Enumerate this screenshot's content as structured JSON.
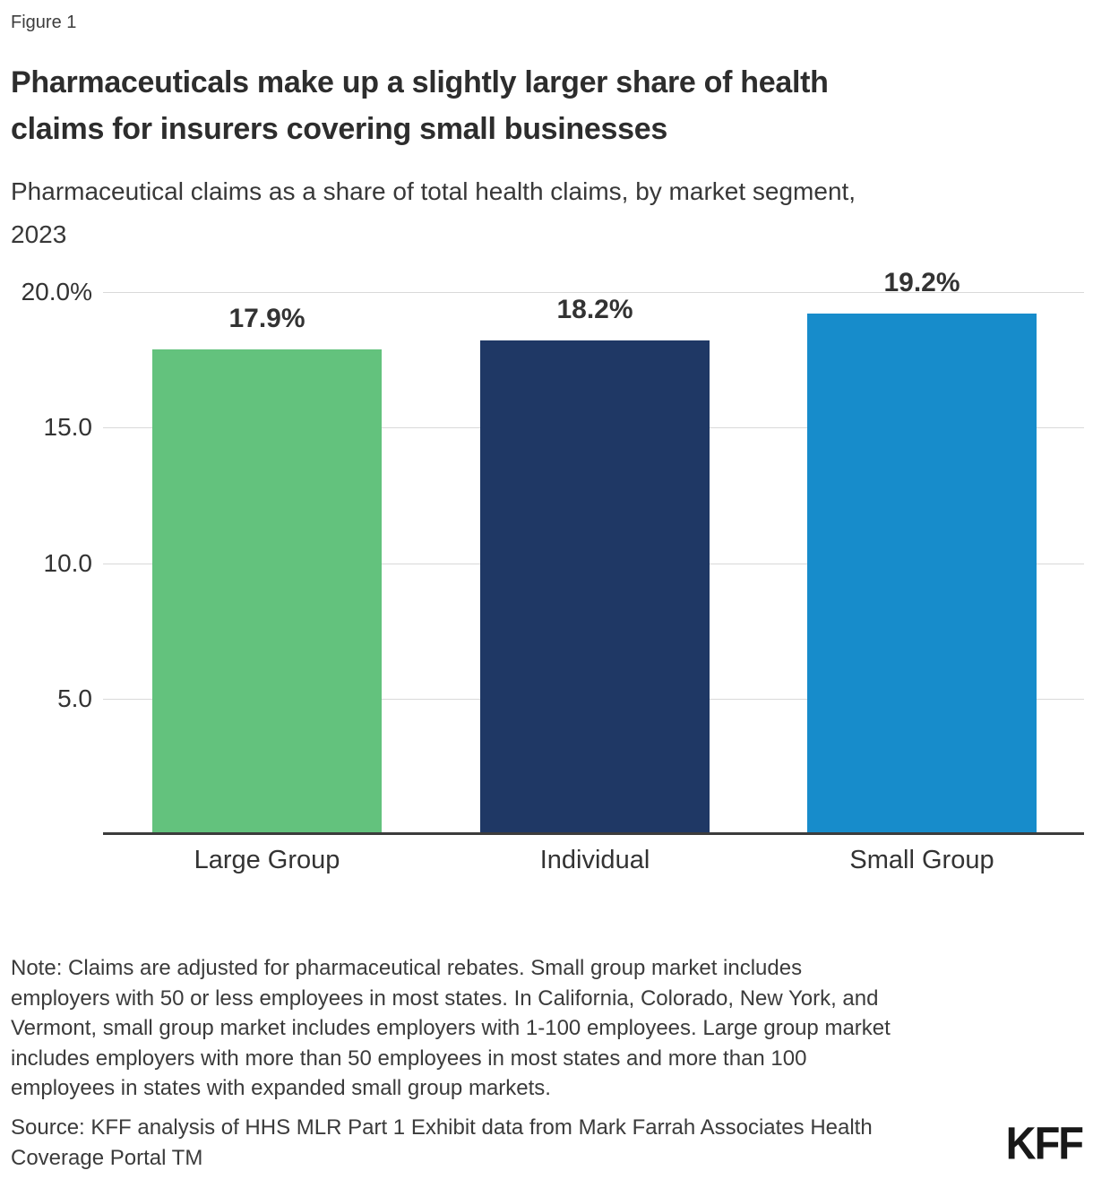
{
  "figure_label": "Figure 1",
  "title": "Pharmaceuticals make up a slightly larger share of health claims for insurers covering small businesses",
  "title_lines": [
    "Pharmaceuticals make up a slightly larger share of health",
    "claims for insurers covering small businesses"
  ],
  "subtitle": "Pharmaceutical claims as a share of total health claims, by market segment, 2023",
  "subtitle_lines": [
    "Pharmaceutical claims as a share of total health claims, by market segment,",
    "2023"
  ],
  "chart_data": {
    "type": "bar",
    "categories": [
      "Large Group",
      "Individual",
      "Small Group"
    ],
    "values": [
      17.9,
      18.2,
      19.2
    ],
    "value_labels": [
      "17.9%",
      "18.2%",
      "19.2%"
    ],
    "bar_colors": [
      "#63c27d",
      "#1f3865",
      "#178ccb"
    ],
    "title": "Pharmaceuticals make up a slightly larger share of health claims for insurers covering small businesses",
    "subtitle": "Pharmaceutical claims as a share of total health claims, by market segment, 2023",
    "xlabel": "",
    "ylabel": "",
    "ylim": [
      0,
      20
    ],
    "grid": "horizontal",
    "legend": "none",
    "yticks": [
      {
        "label": "20.0%",
        "value": 20
      },
      {
        "label": "15.0",
        "value": 15
      },
      {
        "label": "10.0",
        "value": 10
      },
      {
        "label": "5.0",
        "value": 5
      }
    ]
  },
  "note": {
    "lines": [
      "Note: Claims are adjusted for pharmaceutical rebates. Small group market includes",
      "employers with 50 or less employees in most states. In California, Colorado, New York, and",
      "Vermont, small group market includes employers with 1-100 employees. Large group market",
      "includes employers with more than 50 employees in most states and more than 100",
      "employees in states with expanded small group markets."
    ]
  },
  "source": {
    "lines": [
      "Source: KFF analysis of HHS MLR Part 1 Exhibit data from Mark Farrah Associates Health",
      "Coverage Portal TM"
    ]
  },
  "logo_text": "KFF",
  "colors": {
    "green": "#63c27d",
    "navy": "#1f3865",
    "blue": "#178ccb",
    "gridline": "#d9d9d9",
    "axis": "#3c3c3c",
    "text": "#333333"
  }
}
